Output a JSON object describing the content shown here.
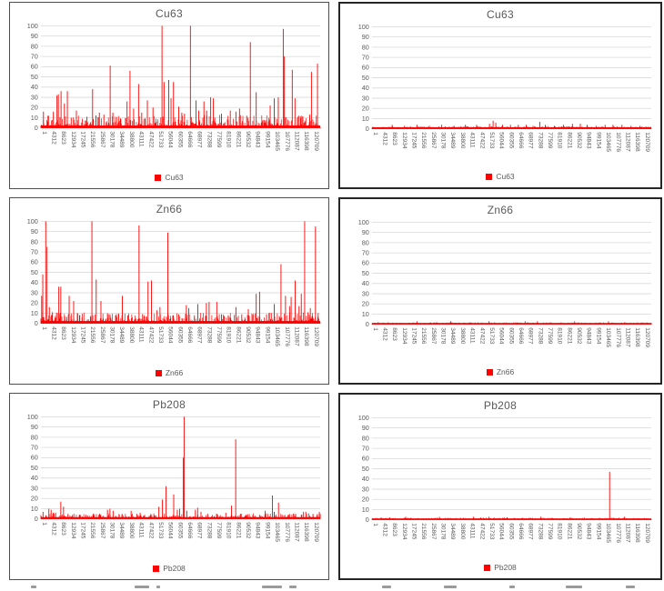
{
  "colors": {
    "series": "#ff0000",
    "gridline": "#d9d9d9",
    "axis_line": "#bfbfbf",
    "text": "#595959",
    "panel_border_left": "#4d4d4d",
    "panel_border_right": "#262626"
  },
  "chart_data": {
    "shared_axes": {
      "x_min": 1,
      "x_max": 124000,
      "x_step": 4311,
      "x_ticks": [
        "1",
        "4312",
        "8623",
        "12934",
        "17245",
        "21556",
        "25867",
        "30178",
        "34489",
        "38800",
        "43111",
        "47422",
        "51733",
        "56044",
        "60355",
        "64666",
        "68977",
        "73288",
        "77599",
        "81910",
        "86221",
        "90532",
        "94843",
        "99154",
        "103465",
        "107776",
        "112087",
        "116398",
        "120709"
      ],
      "y_min": 0,
      "y_max": 100,
      "y_ticks": [
        0,
        10,
        20,
        30,
        40,
        50,
        60,
        70,
        80,
        90,
        100
      ],
      "grid": true,
      "legend_position": "bottom"
    },
    "charts": [
      {
        "type": "bar",
        "title": "Cu63",
        "legend": "Cu63",
        "panel": "row1-left",
        "seed": 11,
        "n": 560,
        "base": 0.7,
        "scale": 12,
        "power": 3.0,
        "band": 2.4,
        "peaks": [
          [
            1200,
            16
          ],
          [
            3200,
            12
          ],
          [
            5600,
            16
          ],
          [
            7200,
            32
          ],
          [
            7800,
            33
          ],
          [
            9000,
            36
          ],
          [
            10500,
            24
          ],
          [
            11800,
            36
          ],
          [
            13500,
            10
          ],
          [
            15800,
            17
          ],
          [
            18500,
            9
          ],
          [
            20500,
            11
          ],
          [
            23000,
            38
          ],
          [
            24500,
            12
          ],
          [
            26000,
            15
          ],
          [
            28000,
            13
          ],
          [
            30800,
            61
          ],
          [
            32000,
            15
          ],
          [
            35500,
            9
          ],
          [
            38300,
            26
          ],
          [
            39600,
            56
          ],
          [
            41200,
            19
          ],
          [
            43400,
            43
          ],
          [
            44800,
            15
          ],
          [
            47300,
            27
          ],
          [
            49800,
            20
          ],
          [
            53800,
            100
          ],
          [
            54700,
            45
          ],
          [
            56800,
            47
          ],
          [
            57800,
            29
          ],
          [
            58900,
            45
          ],
          [
            61200,
            21
          ],
          [
            62600,
            15
          ],
          [
            63800,
            14
          ],
          [
            66400,
            100
          ],
          [
            68900,
            27
          ],
          [
            70100,
            17
          ],
          [
            72400,
            26
          ],
          [
            73600,
            17
          ],
          [
            75400,
            30
          ],
          [
            76600,
            29
          ],
          [
            80200,
            14
          ],
          [
            84100,
            17
          ],
          [
            86600,
            16
          ],
          [
            88200,
            19
          ],
          [
            91400,
            12
          ],
          [
            93000,
            84
          ],
          [
            95600,
            35
          ],
          [
            101800,
            22
          ],
          [
            103600,
            29
          ],
          [
            105400,
            30
          ],
          [
            107600,
            97
          ],
          [
            108100,
            70
          ],
          [
            111600,
            57
          ],
          [
            112800,
            29
          ],
          [
            116200,
            11
          ],
          [
            119300,
            13
          ],
          [
            120100,
            55
          ],
          [
            122800,
            63
          ]
        ]
      },
      {
        "type": "bar",
        "title": "Cu63",
        "legend": "Cu63",
        "panel": "row1-right",
        "seed": 22,
        "n": 560,
        "base": 0.55,
        "scale": 2.1,
        "power": 2.2,
        "band": 1.6,
        "peaks": [
          [
            9000,
            4
          ],
          [
            14500,
            3
          ],
          [
            20000,
            4
          ],
          [
            25500,
            3
          ],
          [
            31000,
            4
          ],
          [
            36500,
            3
          ],
          [
            41500,
            4
          ],
          [
            46500,
            4
          ],
          [
            52200,
            5
          ],
          [
            53800,
            8
          ],
          [
            55000,
            6
          ],
          [
            58000,
            4
          ],
          [
            61500,
            4
          ],
          [
            65000,
            4
          ],
          [
            68500,
            4
          ],
          [
            71500,
            3
          ],
          [
            74500,
            7
          ],
          [
            77000,
            4
          ],
          [
            81000,
            3
          ],
          [
            85000,
            4
          ],
          [
            89000,
            5
          ],
          [
            92500,
            5
          ],
          [
            95500,
            4
          ],
          [
            99500,
            3
          ],
          [
            103500,
            4
          ],
          [
            107000,
            4
          ],
          [
            111000,
            4
          ],
          [
            115000,
            3
          ],
          [
            119000,
            3
          ]
        ]
      },
      {
        "type": "bar",
        "title": "Zn66",
        "legend": "Zn66",
        "panel": "row2-left",
        "seed": 33,
        "n": 560,
        "base": 0.7,
        "scale": 10,
        "power": 3.0,
        "band": 2.4,
        "peaks": [
          [
            400,
            27
          ],
          [
            900,
            48
          ],
          [
            2200,
            100
          ],
          [
            2800,
            75
          ],
          [
            3800,
            16
          ],
          [
            5200,
            11
          ],
          [
            8000,
            36
          ],
          [
            8900,
            36
          ],
          [
            12600,
            27
          ],
          [
            14600,
            22
          ],
          [
            17200,
            8
          ],
          [
            22700,
            100
          ],
          [
            24600,
            43
          ],
          [
            26700,
            22
          ],
          [
            29600,
            10
          ],
          [
            30700,
            9
          ],
          [
            33200,
            8
          ],
          [
            36200,
            27
          ],
          [
            38700,
            8
          ],
          [
            43600,
            96
          ],
          [
            47600,
            41
          ],
          [
            49100,
            42
          ],
          [
            51600,
            13
          ],
          [
            52900,
            16
          ],
          [
            56400,
            89
          ],
          [
            58600,
            8
          ],
          [
            61200,
            9
          ],
          [
            64600,
            18
          ],
          [
            65700,
            15
          ],
          [
            68200,
            8
          ],
          [
            69700,
            19
          ],
          [
            73500,
            20
          ],
          [
            74700,
            21
          ],
          [
            78100,
            21
          ],
          [
            80200,
            9
          ],
          [
            83200,
            8
          ],
          [
            86600,
            16
          ],
          [
            89200,
            9
          ],
          [
            92100,
            14
          ],
          [
            95600,
            29
          ],
          [
            97100,
            31
          ],
          [
            100200,
            9
          ],
          [
            103600,
            19
          ],
          [
            106600,
            58
          ],
          [
            108600,
            27
          ],
          [
            110400,
            17
          ],
          [
            111100,
            26
          ],
          [
            112900,
            42
          ],
          [
            114600,
            17
          ],
          [
            115600,
            29
          ],
          [
            117100,
            100
          ],
          [
            118600,
            11
          ],
          [
            119600,
            15
          ],
          [
            121900,
            95
          ],
          [
            123100,
            10
          ]
        ]
      },
      {
        "type": "bar",
        "title": "Zn66",
        "legend": "Zn66",
        "panel": "row2-right",
        "seed": 44,
        "n": 560,
        "base": 0.5,
        "scale": 1.5,
        "power": 2.0,
        "band": 1.4,
        "peaks": [
          [
            20000,
            3
          ],
          [
            35000,
            3
          ],
          [
            52000,
            3
          ],
          [
            68000,
            3
          ],
          [
            73500,
            3
          ],
          [
            90000,
            3
          ],
          [
            105000,
            3
          ]
        ]
      },
      {
        "type": "bar",
        "title": "Pb208",
        "legend": "Pb208",
        "panel": "row3-left",
        "seed": 55,
        "n": 560,
        "base": 0.55,
        "scale": 5,
        "power": 3.2,
        "band": 1.8,
        "peaks": [
          [
            1000,
            7
          ],
          [
            3600,
            10
          ],
          [
            4600,
            9
          ],
          [
            5600,
            6
          ],
          [
            6600,
            6
          ],
          [
            8900,
            17
          ],
          [
            10100,
            12
          ],
          [
            12100,
            5
          ],
          [
            14100,
            4
          ],
          [
            17100,
            4
          ],
          [
            20100,
            4
          ],
          [
            23100,
            4
          ],
          [
            26100,
            5
          ],
          [
            29600,
            9
          ],
          [
            30700,
            10
          ],
          [
            32100,
            8
          ],
          [
            36100,
            5
          ],
          [
            40100,
            8
          ],
          [
            42600,
            5
          ],
          [
            44100,
            6
          ],
          [
            46100,
            4
          ],
          [
            48100,
            3
          ],
          [
            52400,
            12
          ],
          [
            54000,
            19
          ],
          [
            55600,
            32
          ],
          [
            59000,
            24
          ],
          [
            60600,
            9
          ],
          [
            61600,
            10
          ],
          [
            63200,
            60
          ],
          [
            63600,
            100
          ],
          [
            64800,
            8
          ],
          [
            68600,
            9
          ],
          [
            69600,
            11
          ],
          [
            71100,
            7
          ],
          [
            74100,
            5
          ],
          [
            78100,
            5
          ],
          [
            82100,
            6
          ],
          [
            84600,
            13
          ],
          [
            86500,
            78
          ],
          [
            88600,
            5
          ],
          [
            91100,
            4
          ],
          [
            94100,
            4
          ],
          [
            97100,
            4
          ],
          [
            99600,
            8
          ],
          [
            102800,
            23
          ],
          [
            103600,
            7
          ],
          [
            105500,
            16
          ],
          [
            107100,
            4
          ],
          [
            110100,
            4
          ],
          [
            113100,
            5
          ],
          [
            116600,
            7
          ],
          [
            117600,
            7
          ],
          [
            120800,
            5
          ],
          [
            123600,
            7
          ]
        ]
      },
      {
        "type": "bar",
        "title": "Pb208",
        "legend": "Pb208",
        "panel": "row3-right",
        "seed": 66,
        "n": 560,
        "base": 0.5,
        "scale": 1.7,
        "power": 2.4,
        "band": 1.4,
        "peaks": [
          [
            8000,
            2.5
          ],
          [
            15000,
            3
          ],
          [
            30000,
            3
          ],
          [
            45000,
            3
          ],
          [
            52000,
            3
          ],
          [
            60000,
            2.5
          ],
          [
            75000,
            3
          ],
          [
            88000,
            2.5
          ],
          [
            105500,
            47
          ],
          [
            112000,
            3
          ]
        ]
      }
    ]
  }
}
